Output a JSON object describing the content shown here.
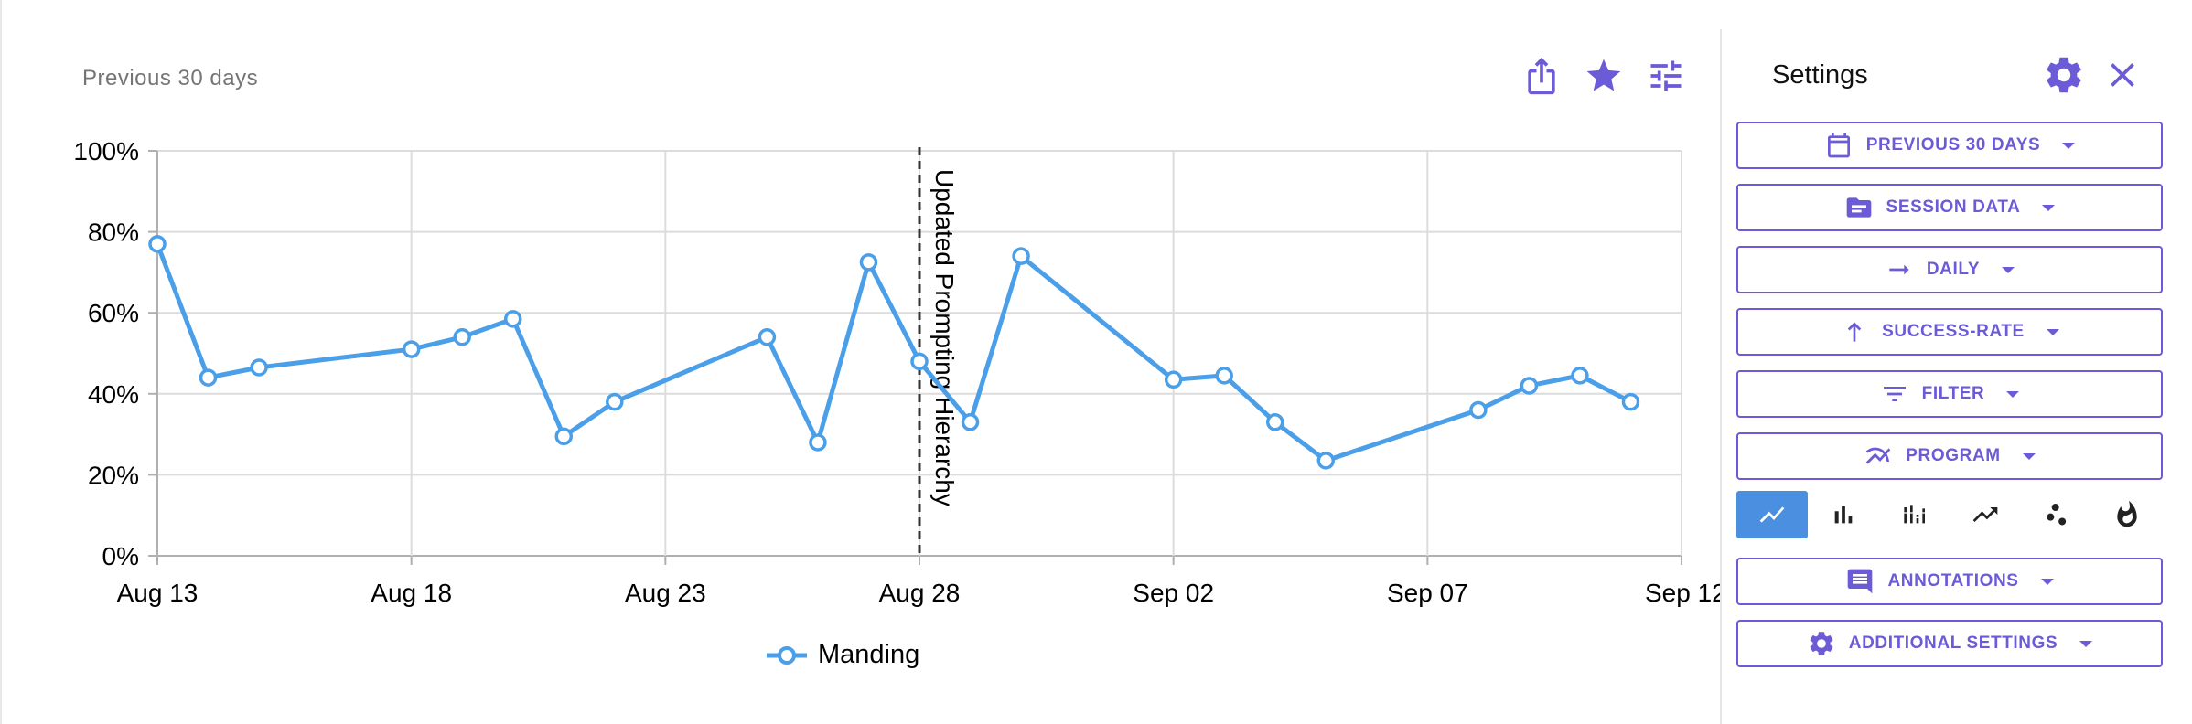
{
  "header": {
    "period_label": "Previous 30 days"
  },
  "toolbar": {
    "share_icon": "share-icon",
    "star_icon": "star-icon",
    "tune_icon": "tune-icon"
  },
  "settings": {
    "title": "Settings",
    "buttons": [
      {
        "label": "PREVIOUS 30 DAYS",
        "icon": "calendar-icon"
      },
      {
        "label": "SESSION DATA",
        "icon": "folder-icon"
      },
      {
        "label": "DAILY",
        "icon": "arrow-right-icon"
      },
      {
        "label": "SUCCESS-RATE",
        "icon": "arrow-up-icon"
      },
      {
        "label": "FILTER",
        "icon": "filter-icon"
      },
      {
        "label": "PROGRAM",
        "icon": "multiline-icon"
      },
      {
        "label": "ANNOTATIONS",
        "icon": "comment-icon"
      },
      {
        "label": "ADDITIONAL SETTINGS",
        "icon": "gear-icon"
      }
    ],
    "chart_types": [
      "line",
      "bar",
      "stacked-bar",
      "trend",
      "scatter",
      "heat"
    ],
    "active_chart_type": "line"
  },
  "colors": {
    "accent": "#6b5bd6",
    "series": "#4a9fe8",
    "active_type": "#4a8fe0"
  },
  "chart_data": {
    "type": "line",
    "title": "",
    "xlabel": "",
    "ylabel": "",
    "x_tick_labels": [
      "Aug 13",
      "Aug 18",
      "Aug 23",
      "Aug 28",
      "Sep 02",
      "Sep 07",
      "Sep 12"
    ],
    "y_tick_labels": [
      "0%",
      "20%",
      "40%",
      "60%",
      "80%",
      "100%"
    ],
    "ylim": [
      0,
      100
    ],
    "xlim": [
      "2024-08-13",
      "2024-09-12"
    ],
    "grid": true,
    "legend": "bottom-center",
    "series": [
      {
        "name": "Manding",
        "points": [
          {
            "x": "2024-08-13",
            "y": 77
          },
          {
            "x": "2024-08-14",
            "y": 44
          },
          {
            "x": "2024-08-15",
            "y": 46.5
          },
          {
            "x": "2024-08-18",
            "y": 51
          },
          {
            "x": "2024-08-19",
            "y": 54
          },
          {
            "x": "2024-08-20",
            "y": 58.5
          },
          {
            "x": "2024-08-21",
            "y": 29.5
          },
          {
            "x": "2024-08-22",
            "y": 38
          },
          {
            "x": "2024-08-25",
            "y": 54
          },
          {
            "x": "2024-08-26",
            "y": 28
          },
          {
            "x": "2024-08-27",
            "y": 72.5
          },
          {
            "x": "2024-08-28",
            "y": 48
          },
          {
            "x": "2024-08-29",
            "y": 33
          },
          {
            "x": "2024-08-30",
            "y": 74
          },
          {
            "x": "2024-09-02",
            "y": 43.5
          },
          {
            "x": "2024-09-03",
            "y": 44.5
          },
          {
            "x": "2024-09-04",
            "y": 33
          },
          {
            "x": "2024-09-05",
            "y": 23.5
          },
          {
            "x": "2024-09-08",
            "y": 36
          },
          {
            "x": "2024-09-09",
            "y": 42
          },
          {
            "x": "2024-09-10",
            "y": 44.5
          },
          {
            "x": "2024-09-11",
            "y": 38
          }
        ]
      }
    ],
    "annotations": [
      {
        "x": "2024-08-28",
        "label": "Updated Prompting Hierarchy"
      }
    ]
  }
}
